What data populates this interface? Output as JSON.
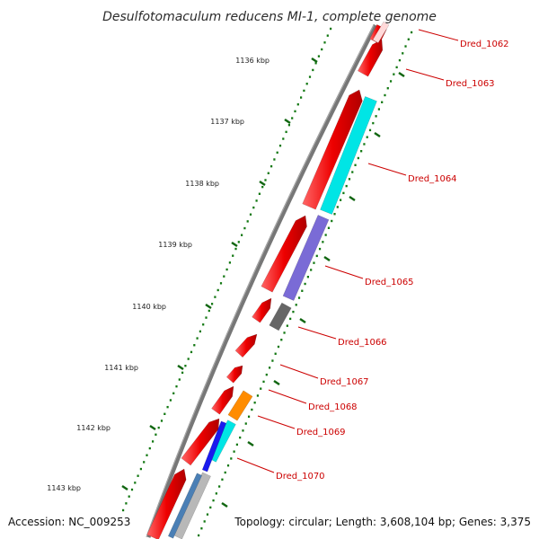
{
  "title": "Desulfotomaculum reducens MI-1, complete genome",
  "footer": {
    "accession": "Accession: NC_009253",
    "summary": "Topology: circular; Length: 3,608,104 bp; Genes: 3,375"
  },
  "colors": {
    "backbone": "#777777",
    "cds_forward": "#ee0000",
    "tick_major": "#116611",
    "tick_minor": "#117711",
    "label": "#cc0000",
    "cyan": "#00e5e5",
    "purple": "#7a6bd6",
    "gray": "#666666",
    "orange": "#ff8c00",
    "blue": "#1a1aee",
    "steel": "#4a7fb5",
    "silver": "#b8b8b8"
  },
  "ticks": [
    {
      "label": "1136 kbp"
    },
    {
      "label": "1137 kbp"
    },
    {
      "label": "1138 kbp"
    },
    {
      "label": "1139 kbp"
    },
    {
      "label": "1140 kbp"
    },
    {
      "label": "1141 kbp"
    },
    {
      "label": "1142 kbp"
    },
    {
      "label": "1143 kbp"
    }
  ],
  "genes": [
    {
      "label": "Dred_1062"
    },
    {
      "label": "Dred_1063"
    },
    {
      "label": "Dred_1064"
    },
    {
      "label": "Dred_1065"
    },
    {
      "label": "Dred_1066"
    },
    {
      "label": "Dred_1067"
    },
    {
      "label": "Dred_1068"
    },
    {
      "label": "Dred_1069"
    },
    {
      "label": "Dred_1070"
    }
  ]
}
